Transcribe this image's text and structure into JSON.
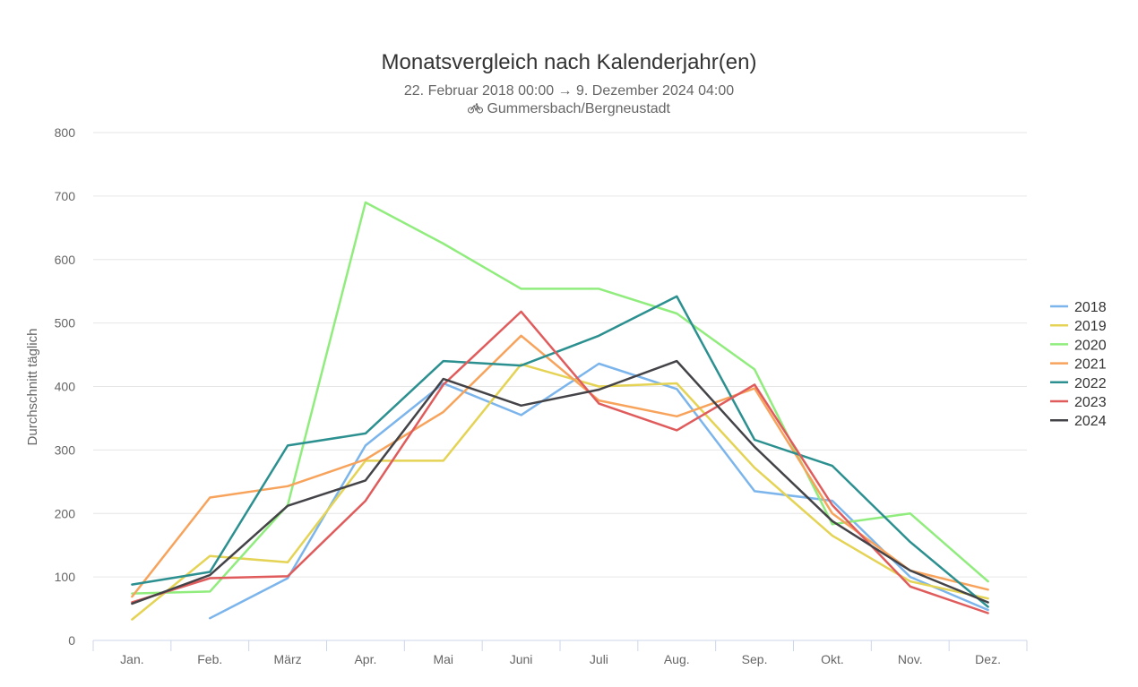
{
  "chart_data": {
    "type": "line",
    "title": "Monatsvergleich nach Kalenderjahr(en)",
    "subtitle": "22. Februar 2018 00:00 → 9. Dezember 2024 04:00",
    "location": "Gummersbach/Bergneustadt",
    "location_icon": "bicycle-icon",
    "xlabel": "",
    "ylabel": "Durchschnitt täglich",
    "ylim": [
      0,
      800
    ],
    "yticks": [
      0,
      100,
      200,
      300,
      400,
      500,
      600,
      700,
      800
    ],
    "grid": true,
    "legend_position": "right",
    "categories": [
      "Jan.",
      "Feb.",
      "März",
      "Apr.",
      "Mai",
      "Juni",
      "Juli",
      "Aug.",
      "Sep.",
      "Okt.",
      "Nov.",
      "Dez."
    ],
    "series": [
      {
        "name": "2018",
        "color": "#7cb5ec",
        "values": [
          null,
          35,
          98,
          307,
          405,
          355,
          436,
          396,
          235,
          220,
          100,
          48
        ]
      },
      {
        "name": "2019",
        "color": "#e4d354",
        "values": [
          33,
          133,
          123,
          283,
          283,
          435,
          400,
          405,
          272,
          165,
          93,
          66
        ]
      },
      {
        "name": "2020",
        "color": "#90ed7d",
        "values": [
          74,
          77,
          213,
          690,
          625,
          554,
          554,
          515,
          427,
          183,
          200,
          93
        ]
      },
      {
        "name": "2021",
        "color": "#f7a35c",
        "values": [
          69,
          225,
          243,
          285,
          360,
          480,
          378,
          353,
          397,
          200,
          110,
          80
        ]
      },
      {
        "name": "2022",
        "color": "#2b908f",
        "values": [
          88,
          108,
          307,
          326,
          440,
          433,
          480,
          542,
          316,
          275,
          155,
          53
        ]
      },
      {
        "name": "2023",
        "color": "#e05c5c",
        "values": [
          60,
          98,
          101,
          220,
          403,
          518,
          373,
          331,
          403,
          213,
          85,
          43
        ]
      },
      {
        "name": "2024",
        "color": "#434348",
        "values": [
          58,
          103,
          212,
          252,
          412,
          370,
          395,
          440,
          305,
          188,
          110,
          60
        ]
      }
    ]
  }
}
